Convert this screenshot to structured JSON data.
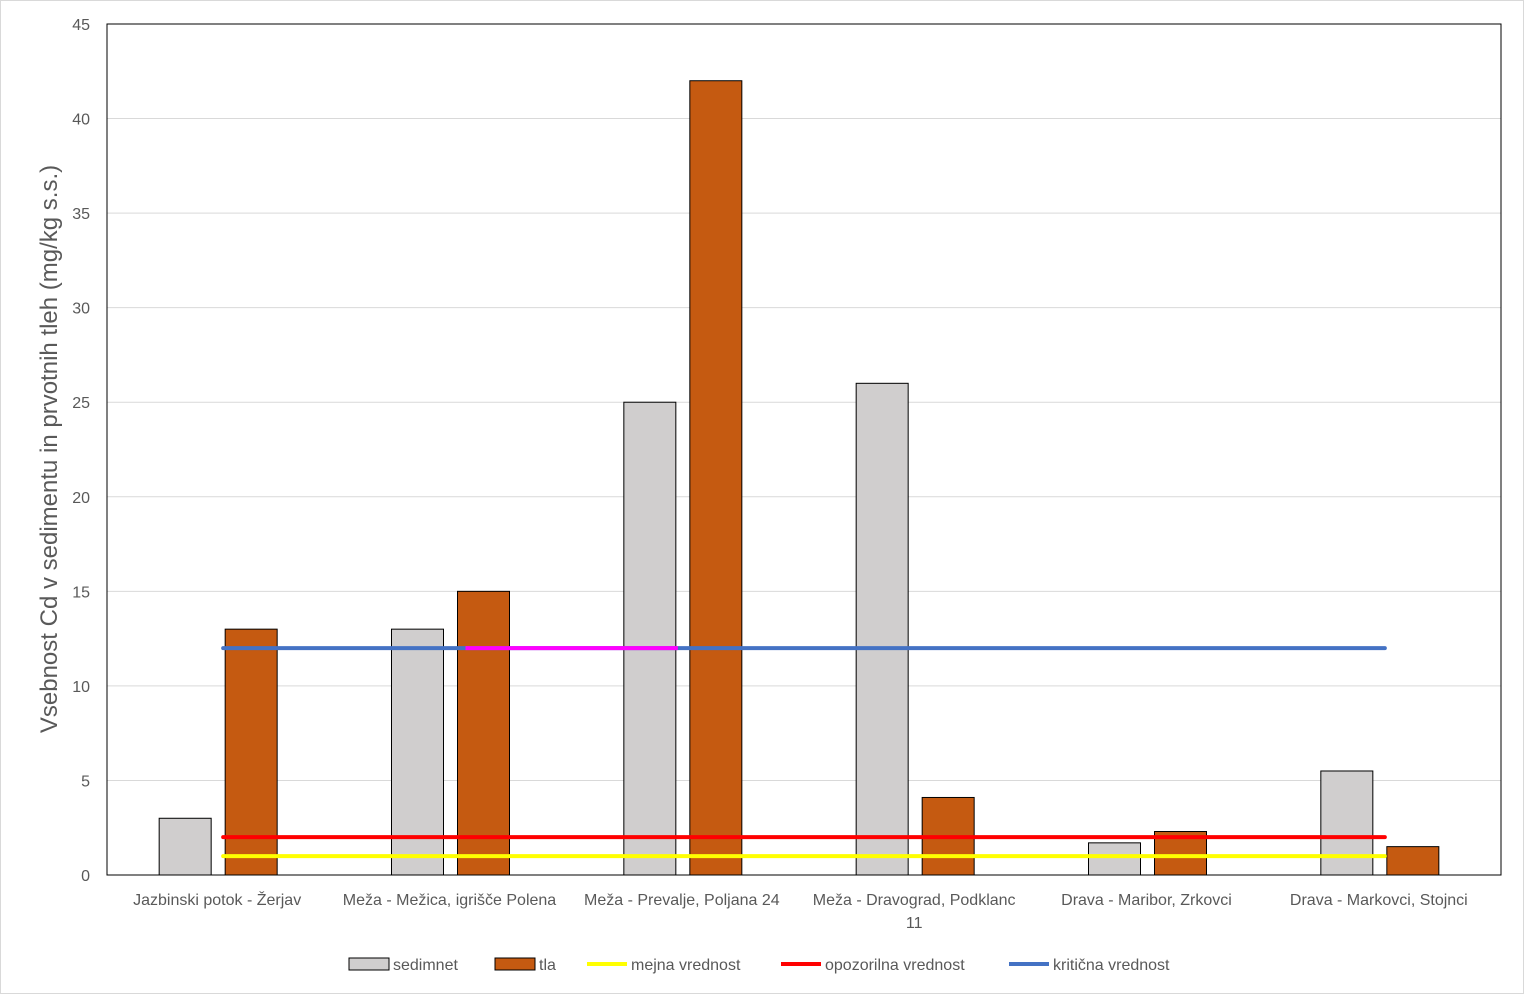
{
  "chart_data": {
    "type": "bar",
    "title": "",
    "xlabel": "",
    "ylabel": "Vsebnost  Cd v sedimentu in prvotnih tleh (mg/kg s.s.)",
    "ylim": [
      0,
      45
    ],
    "yticks": [
      0,
      5,
      10,
      15,
      20,
      25,
      30,
      35,
      40,
      45
    ],
    "grid": true,
    "legend_position": "bottom",
    "categories": [
      [
        "Jazbinski potok - Žerjav"
      ],
      [
        "Meža - Mežica, igrišče Polena"
      ],
      [
        "Meža - Prevalje, Poljana 24"
      ],
      [
        "Meža - Dravograd, Podklanc",
        "11"
      ],
      [
        "Drava - Maribor, Zrkovci"
      ],
      [
        "Drava - Markovci, Stojnci"
      ]
    ],
    "series": [
      {
        "name": "sedimnet",
        "type": "bar",
        "color": "#d0cece",
        "values": [
          3,
          13,
          25,
          26,
          1.7,
          5.5
        ]
      },
      {
        "name": "tla",
        "type": "bar",
        "color": "#c55a11",
        "values": [
          13,
          15,
          42,
          4.1,
          2.3,
          1.5
        ]
      },
      {
        "name": "mejna vrednost",
        "type": "line",
        "color": "#ffff00",
        "values": [
          1,
          1,
          1,
          1,
          1,
          1
        ]
      },
      {
        "name": "opozorilna vrednost",
        "type": "line",
        "color": "#ff0000",
        "values": [
          2,
          2,
          2,
          2,
          2,
          2
        ]
      },
      {
        "name": "kritična vrednost",
        "type": "line",
        "color": "#4472c4",
        "values": [
          12,
          12,
          12,
          12,
          12,
          12
        ]
      }
    ],
    "highlight_color": "#ff00ff"
  }
}
